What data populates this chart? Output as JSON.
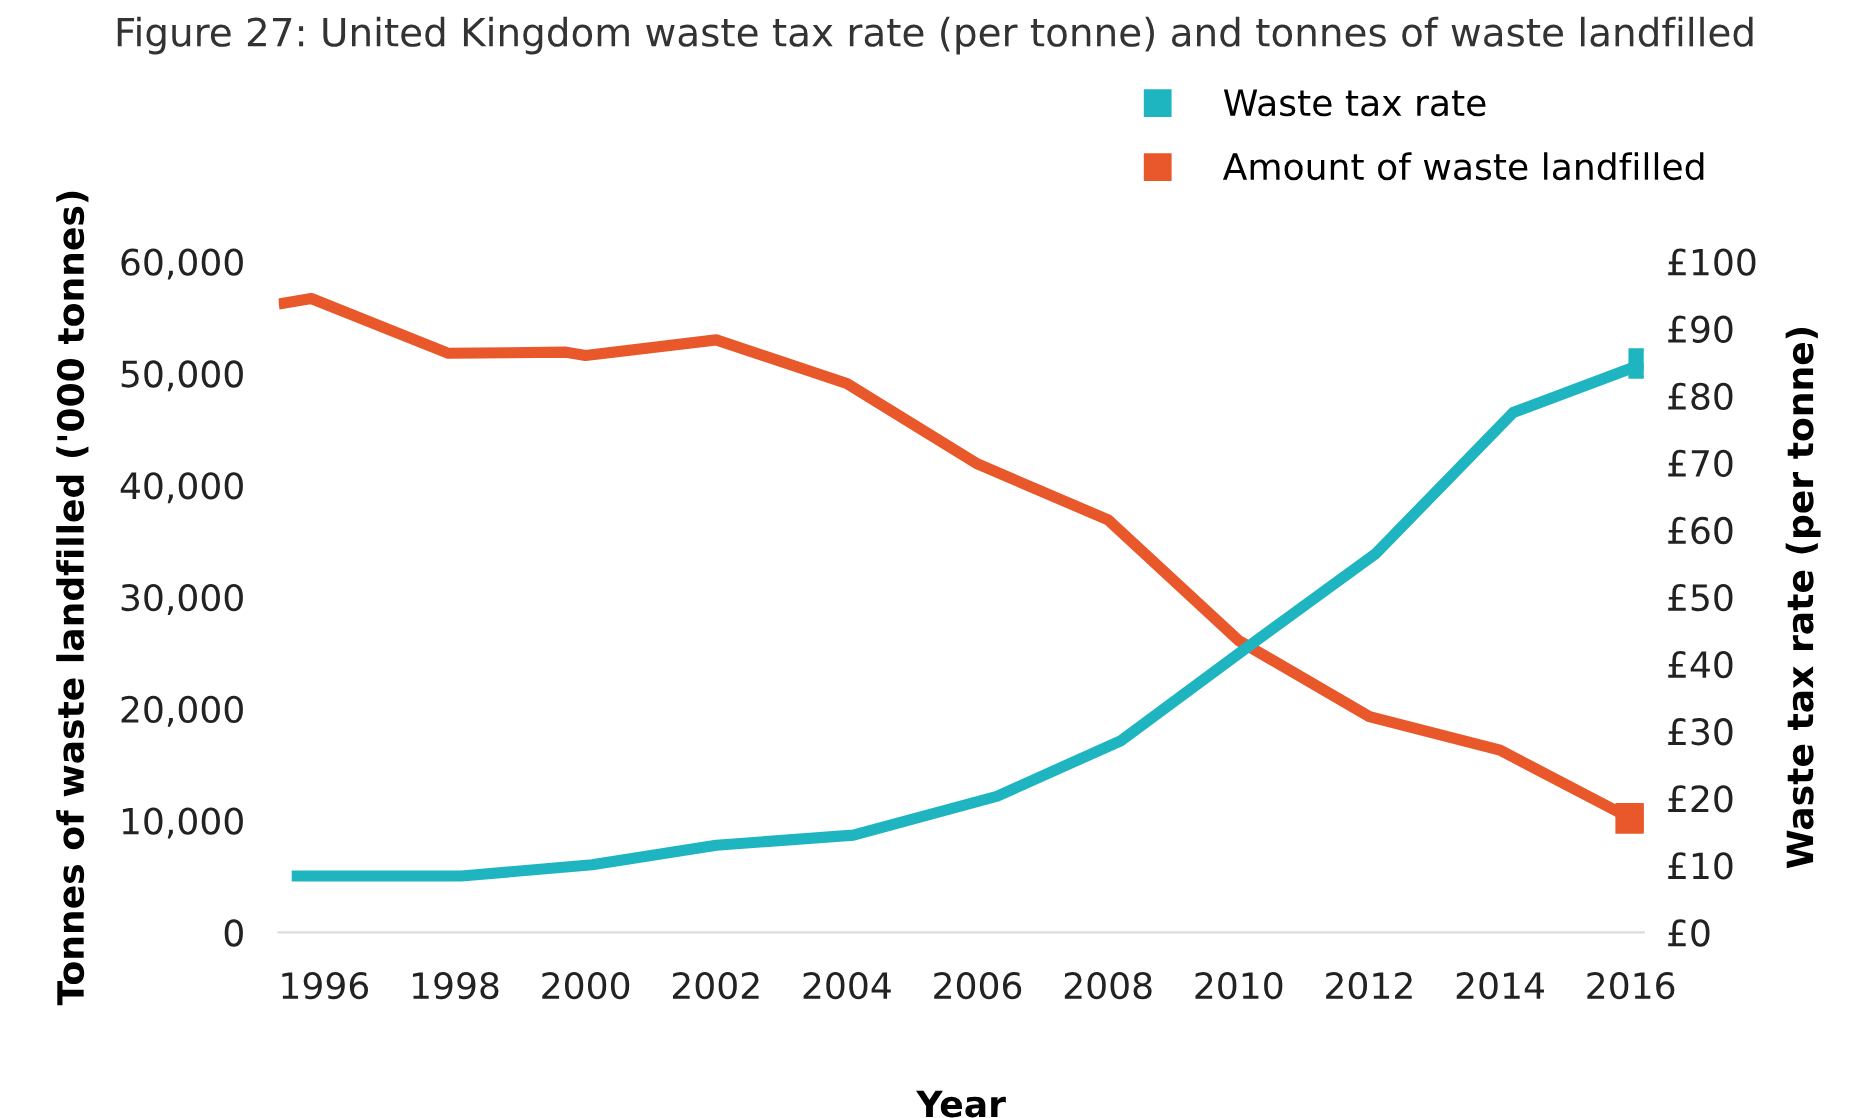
{
  "chart_data": {
    "type": "line",
    "title": "Figure 27: United Kingdom waste tax rate (per tonne) and tonnes of waste landfilled",
    "xlabel": "Year",
    "ylabel": "Tonnes of waste landfilled ('000 tonnes)",
    "y2label": "Waste tax rate (per tonne)",
    "series": [
      {
        "name": "Waste tax rate",
        "color": "#1fb5c0",
        "axis": "y2",
        "x": [
          1995.5,
          1998.1,
          2000.1,
          2002.0,
          2004.1,
          2006.3,
          2008.2,
          2010.1,
          2012.1,
          2014.2,
          2016.2
        ],
        "values": [
          8.4,
          8.4,
          10.1,
          13.0,
          14.5,
          20.3,
          28.6,
          42.3,
          56.5,
          77.5,
          84.8
        ]
      },
      {
        "name": "Amount of waste landfilled",
        "color": "#e8582a",
        "x": [
          1995.3,
          1995.8,
          1997.9,
          1999.7,
          2000.0,
          2002.0,
          2004.0,
          2006.0,
          2008.0,
          2010.0,
          2012.0,
          2014.0,
          2016.0
        ],
        "values": [
          56200,
          56700,
          51800,
          51900,
          51600,
          53000,
          49100,
          41900,
          36900,
          26100,
          19300,
          16300,
          10200
        ]
      }
    ],
    "xlim": [
      1995.3,
      2016.2
    ],
    "xticks": [
      1996,
      1998,
      2000,
      2002,
      2004,
      2006,
      2008,
      2010,
      2012,
      2014,
      2016
    ],
    "ylim": [
      0,
      60000
    ],
    "yticks": [
      {
        "value": 0,
        "label": "0"
      },
      {
        "value": 10000,
        "label": "10,000"
      },
      {
        "value": 20000,
        "label": "20,000"
      },
      {
        "value": 30000,
        "label": "30,000"
      },
      {
        "value": 40000,
        "label": "40,000"
      },
      {
        "value": 50000,
        "label": "50,000"
      },
      {
        "value": 60000,
        "label": "60,000"
      }
    ],
    "y2lim": [
      0,
      100
    ],
    "y2ticks": [
      {
        "value": 0,
        "label": "£0"
      },
      {
        "value": 10,
        "label": "£10"
      },
      {
        "value": 20,
        "label": "£20"
      },
      {
        "value": 30,
        "label": "£30"
      },
      {
        "value": 40,
        "label": "£40"
      },
      {
        "value": 50,
        "label": "£50"
      },
      {
        "value": 60,
        "label": "£60"
      },
      {
        "value": 70,
        "label": "£70"
      },
      {
        "value": 80,
        "label": "£80"
      },
      {
        "value": 90,
        "label": "£90"
      },
      {
        "value": 100,
        "label": "£100"
      }
    ],
    "legend": "top right",
    "line_style": "solid"
  }
}
